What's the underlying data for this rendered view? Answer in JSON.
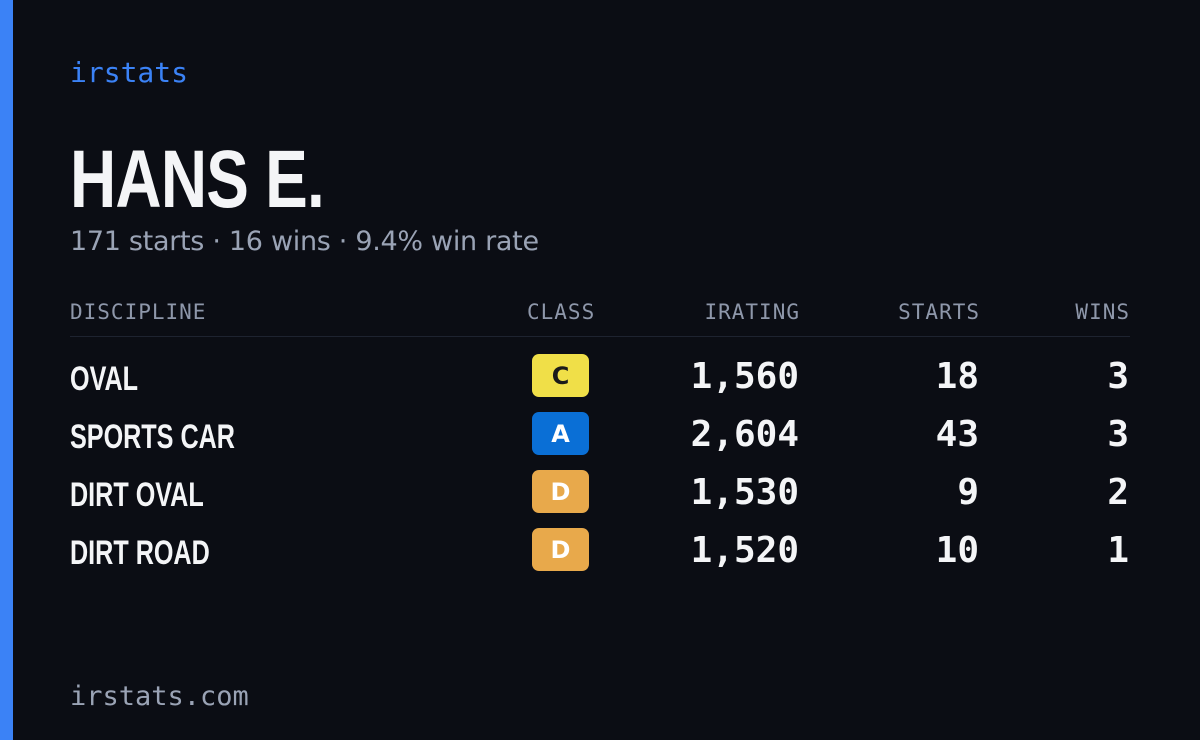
{
  "brand": "irstats",
  "player": {
    "name": "HANS E.",
    "summary": "171 starts · 16 wins · 9.4% win rate"
  },
  "table": {
    "headers": {
      "discipline": "DISCIPLINE",
      "class": "CLASS",
      "irating": "IRATING",
      "starts": "STARTS",
      "wins": "WINS"
    },
    "rows": [
      {
        "discipline": "OVAL",
        "class": "C",
        "irating": "1,560",
        "starts": "18",
        "wins": "3"
      },
      {
        "discipline": "SPORTS CAR",
        "class": "A",
        "irating": "2,604",
        "starts": "43",
        "wins": "3"
      },
      {
        "discipline": "DIRT OVAL",
        "class": "D",
        "irating": "1,530",
        "starts": "9",
        "wins": "2"
      },
      {
        "discipline": "DIRT ROAD",
        "class": "D",
        "irating": "1,520",
        "starts": "10",
        "wins": "1"
      }
    ]
  },
  "footer": "irstats.com",
  "colors": {
    "background": "#0b0d14",
    "accent": "#3b82f6",
    "class_badges": {
      "A": {
        "bg": "#0a6fd6",
        "fg": "#ffffff"
      },
      "C": {
        "bg": "#f0df48",
        "fg": "#1a1a1a"
      },
      "D": {
        "bg": "#e8a94b",
        "fg": "#ffffff"
      }
    }
  }
}
